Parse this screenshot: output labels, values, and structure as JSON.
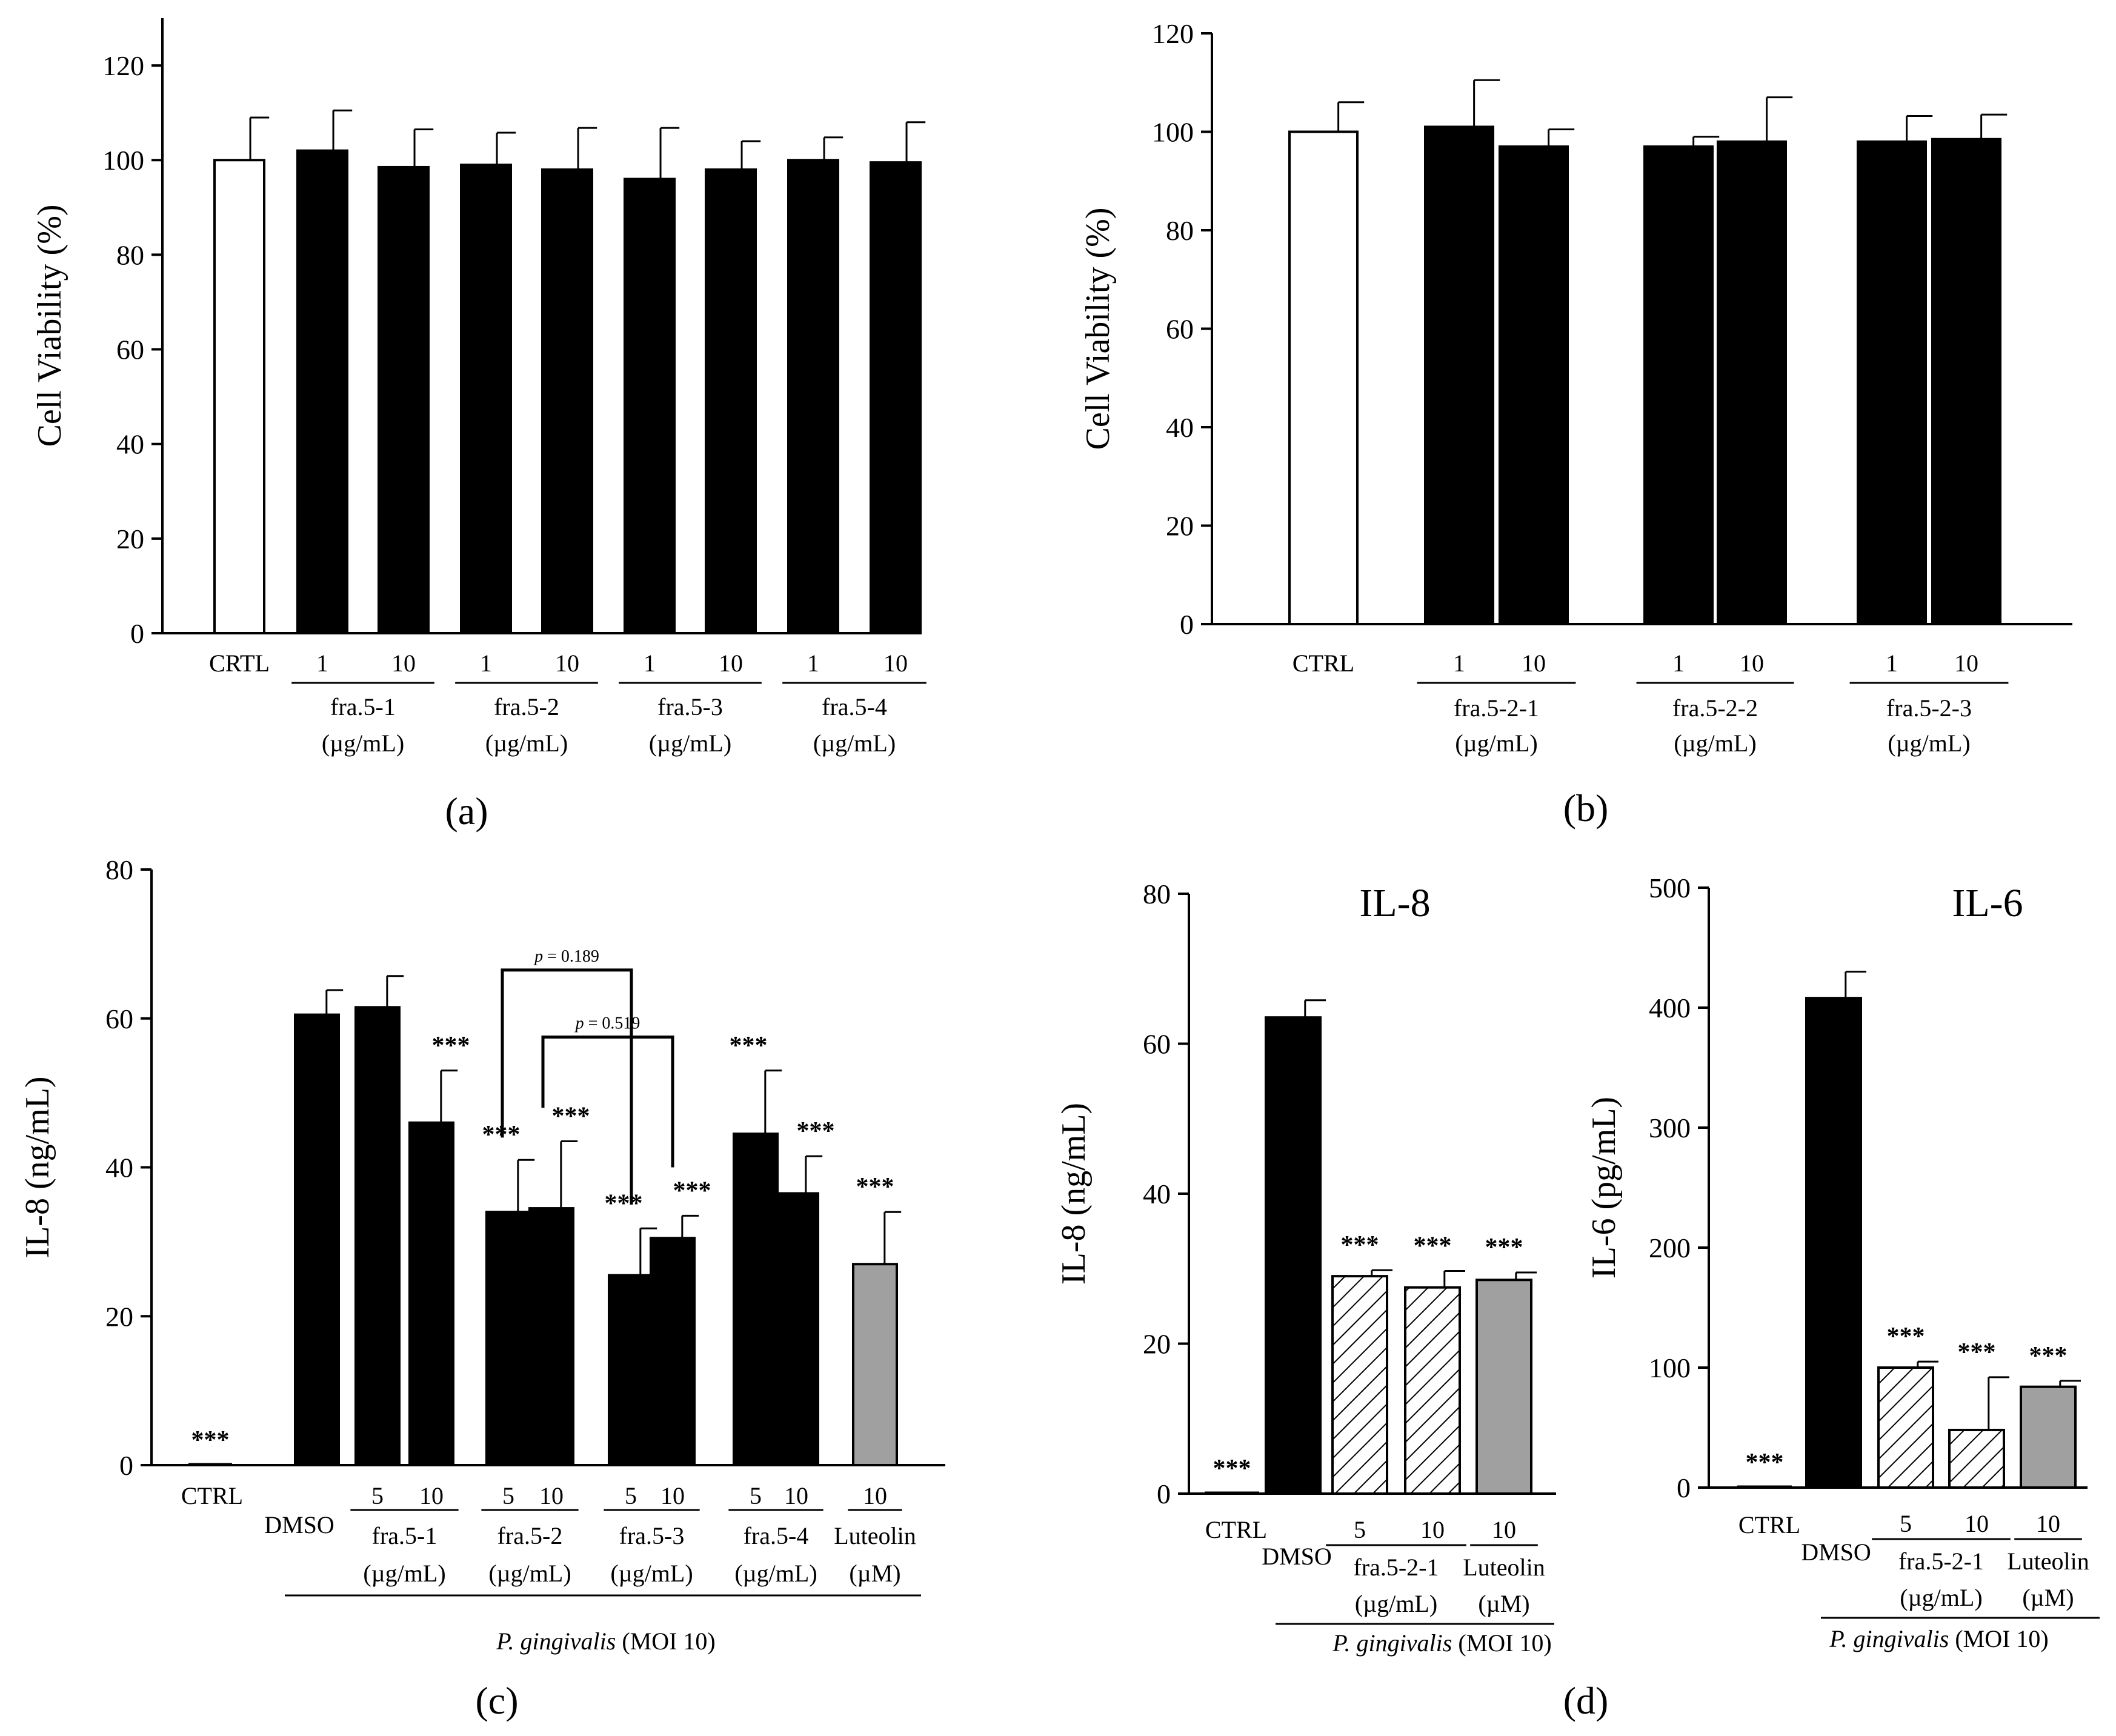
{
  "charts": [
    {
      "id": "a",
      "type": "bar",
      "panel_label": "(a)",
      "ylabel": "Cell Viability (%)",
      "ylim": [
        0,
        130
      ],
      "yticks": [
        "0",
        "20",
        "40",
        "60",
        "80",
        "100",
        "120"
      ],
      "categories": [
        "CRTL",
        "1",
        "10",
        "1",
        "10",
        "1",
        "10",
        "1",
        "10"
      ],
      "values": [
        100,
        102,
        98.5,
        99,
        98,
        96,
        98,
        100,
        99.5
      ],
      "errors": [
        9,
        8.5,
        8,
        6.8,
        8.8,
        10.8,
        6,
        4.8,
        8.5
      ],
      "fills": [
        "white",
        "black",
        "black",
        "black",
        "black",
        "black",
        "black",
        "black",
        "black"
      ],
      "groups": [
        {
          "name": "fra.5-1",
          "unit": "(µg/mL)"
        },
        {
          "name": "fra.5-2",
          "unit": "(µg/mL)"
        },
        {
          "name": "fra.5-3",
          "unit": "(µg/mL)"
        },
        {
          "name": "fra.5-4",
          "unit": "(µg/mL)"
        }
      ]
    },
    {
      "id": "b",
      "type": "bar",
      "panel_label": "(b)",
      "ylabel": "Cell Viability (%)",
      "ylim": [
        0,
        120
      ],
      "yticks": [
        "0",
        "20",
        "40",
        "60",
        "80",
        "100",
        "120"
      ],
      "categories": [
        "CTRL",
        "1",
        "10",
        "1",
        "10",
        "1",
        "10"
      ],
      "values": [
        100,
        101,
        97,
        97,
        98,
        98,
        98.5
      ],
      "errors": [
        6,
        9.5,
        3.5,
        2,
        9,
        5.2,
        5
      ],
      "fills": [
        "white",
        "black",
        "black",
        "black",
        "black",
        "black",
        "black"
      ],
      "groups": [
        {
          "name": "fra.5-2-1",
          "unit": "(µg/mL)"
        },
        {
          "name": "fra.5-2-2",
          "unit": "(µg/mL)"
        },
        {
          "name": "fra.5-2-3",
          "unit": "(µg/mL)"
        }
      ]
    },
    {
      "id": "c",
      "type": "bar",
      "panel_label": "(c)",
      "ylabel": "IL-8 (ng/mL)",
      "ylim": [
        0,
        80
      ],
      "yticks": [
        "0",
        "20",
        "40",
        "60",
        "80"
      ],
      "categories": [
        "CTRL",
        "DMSO",
        "5",
        "10",
        "5",
        "10",
        "5",
        "10",
        "5",
        "10",
        "10"
      ],
      "values": [
        0,
        60.5,
        61.5,
        46,
        34,
        34.5,
        25.5,
        30.5,
        44.5,
        36.5,
        27
      ],
      "errors": [
        0,
        3.3,
        4.2,
        7,
        7,
        9,
        6.3,
        3,
        8.5,
        5,
        7
      ],
      "fills": [
        "none",
        "black",
        "black",
        "black",
        "black",
        "black",
        "black",
        "black",
        "black",
        "black",
        "gray"
      ],
      "significance": [
        "***",
        "",
        "",
        "***",
        "***",
        "***",
        "***",
        "***",
        "***",
        "***",
        "***"
      ],
      "groups": [
        {
          "name": "fra.5-1",
          "unit": "(µg/mL)"
        },
        {
          "name": "fra.5-2",
          "unit": "(µg/mL)"
        },
        {
          "name": "fra.5-3",
          "unit": "(µg/mL)"
        },
        {
          "name": "fra.5-4",
          "unit": "(µg/mL)"
        },
        {
          "name": "Luteolin",
          "unit": "(µM)"
        }
      ],
      "comparisons": [
        {
          "p_prefix": "p",
          "p_value": " = 0.189"
        },
        {
          "p_prefix": "p",
          "p_value": " = 0.519"
        }
      ],
      "footnote_italic": "P. gingivalis",
      "footnote_rest": " (MOI 10)"
    },
    {
      "id": "d1",
      "type": "bar",
      "title": "IL-8",
      "ylabel": "IL-8 (ng/mL)",
      "ylim": [
        0,
        80
      ],
      "yticks": [
        "0",
        "20",
        "40",
        "60",
        "80"
      ],
      "categories": [
        "CTRL",
        "DMSO",
        "5",
        "10",
        "10"
      ],
      "values": [
        0,
        63.5,
        29,
        27.5,
        28.5
      ],
      "errors": [
        0,
        2.3,
        0.8,
        2.2,
        1
      ],
      "fills": [
        "none",
        "black",
        "hatch",
        "hatch",
        "gray"
      ],
      "significance": [
        "***",
        "",
        "***",
        "***",
        "***"
      ],
      "groups": [
        {
          "name": "fra.5-2-1",
          "unit": "(µg/mL)"
        },
        {
          "name": "Luteolin",
          "unit": "(µM)"
        }
      ],
      "footnote_italic": "P. gingivalis",
      "footnote_rest": " (MOI 10)"
    },
    {
      "id": "d2",
      "type": "bar",
      "title": "IL-6",
      "ylabel": "IL-6 (pg/mL)",
      "ylim": [
        0,
        500
      ],
      "yticks": [
        "0",
        "100",
        "200",
        "300",
        "400",
        "500"
      ],
      "categories": [
        "CTRL",
        "DMSO",
        "5",
        "10",
        "10"
      ],
      "values": [
        0,
        408,
        100,
        48,
        84
      ],
      "errors": [
        0,
        22,
        5,
        44,
        5
      ],
      "fills": [
        "none",
        "black",
        "hatch",
        "hatch",
        "gray"
      ],
      "significance": [
        "***",
        "",
        "***",
        "***",
        "***"
      ],
      "groups": [
        {
          "name": "fra.5-2-1",
          "unit": "(µg/mL)"
        },
        {
          "name": "Luteolin",
          "unit": "(µM)"
        }
      ],
      "footnote_italic": "P. gingivalis",
      "footnote_rest": " (MOI 10)",
      "panel_label": "(d)"
    }
  ]
}
